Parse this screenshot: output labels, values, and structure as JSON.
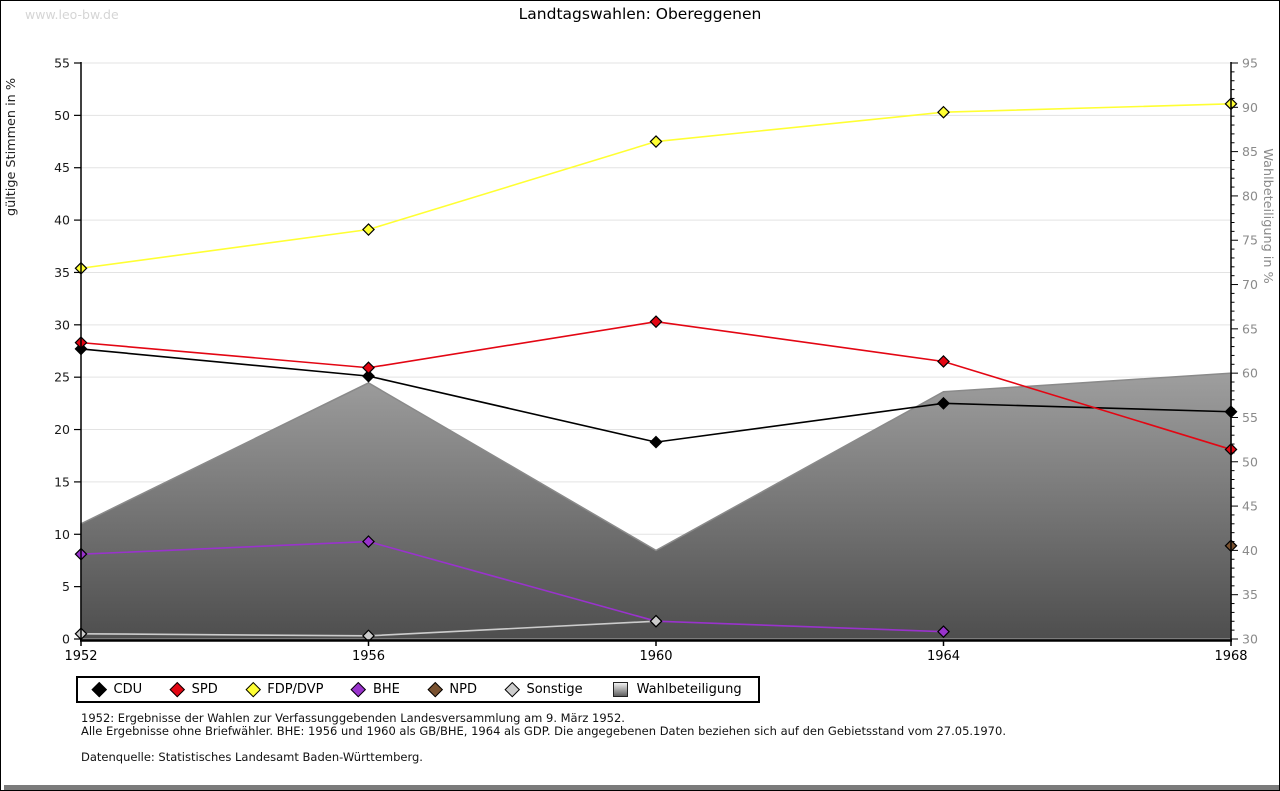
{
  "page": {
    "watermark": "www.leo-bw.de"
  },
  "chart_data": {
    "type": "line",
    "title": "Landtagswahlen: Obereggenen",
    "x": [
      1952,
      1956,
      1960,
      1964,
      1968
    ],
    "grid": true,
    "legend_position": "bottom",
    "left_axis": {
      "label": "gültige Stimmen in %",
      "min": 0,
      "max": 55,
      "ticks": [
        0,
        5,
        10,
        15,
        20,
        25,
        30,
        35,
        40,
        45,
        50,
        55
      ]
    },
    "right_axis": {
      "label": "Wahlbeteiligung in %",
      "min": 30,
      "max": 95,
      "ticks": [
        30,
        35,
        40,
        45,
        50,
        55,
        60,
        65,
        70,
        75,
        80,
        85,
        90,
        95
      ],
      "minor_tick_step": 1
    },
    "series": [
      {
        "name": "Wahlbeteiligung",
        "type": "area",
        "axis": "right",
        "stroke": "#8a8a8a",
        "fill_top": "#fcfcfc",
        "fill_bottom": "#4e4e4e",
        "values": [
          43.0,
          58.9,
          40.0,
          57.9,
          60.0
        ]
      },
      {
        "name": "CDU",
        "type": "line",
        "axis": "left",
        "color": "#000000",
        "values": [
          27.7,
          25.1,
          18.8,
          22.5,
          21.7
        ]
      },
      {
        "name": "SPD",
        "type": "line",
        "axis": "left",
        "color": "#e30613",
        "values": [
          28.3,
          25.9,
          30.3,
          26.5,
          18.1
        ]
      },
      {
        "name": "FDP/DVP",
        "type": "line",
        "axis": "left",
        "color": "#ffff33",
        "values": [
          35.4,
          39.1,
          47.5,
          50.3,
          51.1
        ]
      },
      {
        "name": "BHE",
        "type": "line",
        "axis": "left",
        "color": "#9933cc",
        "values": [
          8.1,
          9.3,
          1.7,
          0.7,
          null
        ]
      },
      {
        "name": "NPD",
        "type": "line",
        "axis": "left",
        "color": "#7a5230",
        "values": [
          null,
          null,
          null,
          null,
          8.9
        ]
      },
      {
        "name": "Sonstige",
        "type": "line",
        "axis": "left",
        "color": "#cccccc",
        "values": [
          0.5,
          0.3,
          1.7,
          null,
          null
        ]
      }
    ],
    "legend_order": [
      "CDU",
      "SPD",
      "FDP/DVP",
      "BHE",
      "NPD",
      "Sonstige",
      "Wahlbeteiligung"
    ]
  },
  "footnotes": {
    "line1": "1952: Ergebnisse der Wahlen zur Verfassunggebenden Landesversammlung am 9. März 1952.",
    "line2": "Alle Ergebnisse ohne Briefwähler. BHE: 1956 und 1960 als GB/BHE, 1964 als GDP. Die angegebenen Daten beziehen sich auf den Gebietsstand vom 27.05.1970.",
    "line3": "Datenquelle: Statistisches Landesamt Baden-Württemberg."
  }
}
